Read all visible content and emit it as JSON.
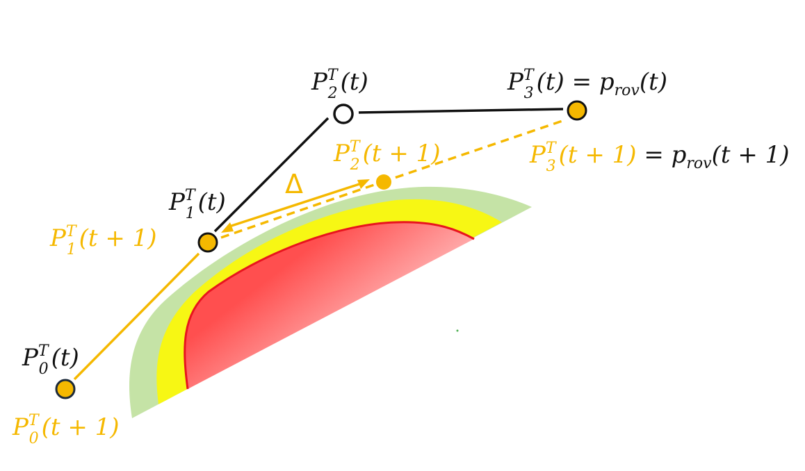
{
  "labels": {
    "p0_t": {
      "sym": "P",
      "sub": "0",
      "sup": "T",
      "arg": "(t)"
    },
    "p0_t1": {
      "sym": "P",
      "sub": "0",
      "sup": "T",
      "arg": "(t + 1)"
    },
    "p1_t": {
      "sym": "P",
      "sub": "1",
      "sup": "T",
      "arg": "(t)"
    },
    "p1_t1": {
      "sym": "P",
      "sub": "1",
      "sup": "T",
      "arg": "(t + 1)"
    },
    "p2_t": {
      "sym": "P",
      "sub": "2",
      "sup": "T",
      "arg": "(t)"
    },
    "p2_t1": {
      "sym": "P",
      "sub": "2",
      "sup": "T",
      "arg": "(t + 1)"
    },
    "p3_t": {
      "sym": "P",
      "sub": "3",
      "sup": "T",
      "arg": "(t)",
      "eq": " = ",
      "rhs_sym": "p",
      "rhs_sub": "rov",
      "rhs_arg": "(t)"
    },
    "p3_t1": {
      "sym": "P",
      "sub": "3",
      "sup": "T",
      "arg": "(t + 1)",
      "eq": " = ",
      "rhs_sym": "p",
      "rhs_sub": "rov",
      "rhs_arg": "(t + 1)"
    },
    "delta": "Δ"
  },
  "colors": {
    "black": "#111111",
    "gold": "#F5B800",
    "green_band": "#C5E3A6",
    "yellow_band": "#F7F714",
    "red_core": "#FF5050",
    "red_edge": "#E8141E"
  }
}
